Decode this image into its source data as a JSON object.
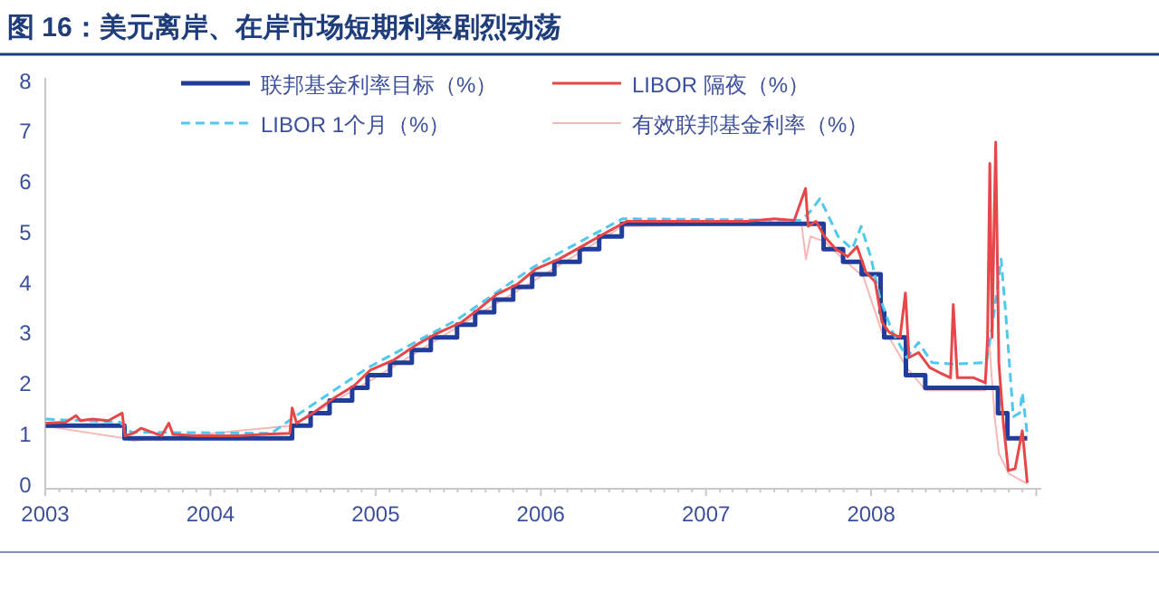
{
  "chart_data": {
    "type": "line",
    "title": "图 16：美元离岸、在岸市场短期利率剧烈动荡",
    "xlim": [
      "2003-01-01",
      "2009-01-12"
    ],
    "xticks": [
      "2003",
      "2004",
      "2005",
      "2006",
      "2007",
      "2008"
    ],
    "ylim": [
      0,
      8
    ],
    "yticks": [
      0,
      1,
      2,
      3,
      4,
      5,
      6,
      7,
      8
    ],
    "grid": false,
    "legend": "top",
    "marker": "none",
    "series": [
      {
        "name": "联邦基金利率目标（%）",
        "type": "step",
        "color": "#1f3d99",
        "line_style": "solid",
        "x": [
          "2003-01-02",
          "2003-06-25",
          "2004-06-30",
          "2004-08-10",
          "2004-09-21",
          "2004-11-10",
          "2004-12-14",
          "2005-02-02",
          "2005-03-22",
          "2005-05-03",
          "2005-06-30",
          "2005-08-09",
          "2005-09-20",
          "2005-11-01",
          "2005-12-13",
          "2006-01-31",
          "2006-03-28",
          "2006-05-10",
          "2006-06-29",
          "2007-09-18",
          "2007-10-31",
          "2007-12-11",
          "2008-01-22",
          "2008-01-30",
          "2008-03-18",
          "2008-04-30",
          "2008-10-08",
          "2008-10-29",
          "2008-12-12"
        ],
        "values": [
          1.25,
          1.0,
          1.25,
          1.5,
          1.75,
          2.0,
          2.25,
          2.5,
          2.75,
          3.0,
          3.25,
          3.5,
          3.75,
          4.0,
          4.25,
          4.5,
          4.75,
          5.0,
          5.25,
          4.75,
          4.5,
          4.25,
          3.5,
          3.0,
          2.25,
          2.0,
          1.5,
          1.0,
          1.0
        ]
      },
      {
        "name": "LIBOR 隔夜（%）",
        "type": "line",
        "color": "#e8474a",
        "line_style": "solid",
        "x": [
          "2003-01-02",
          "2003-02-15",
          "2003-03-10",
          "2003-03-20",
          "2003-04-15",
          "2003-05-20",
          "2003-06-20",
          "2003-06-26",
          "2003-07-15",
          "2003-08-01",
          "2003-09-15",
          "2003-10-01",
          "2003-10-10",
          "2003-12-01",
          "2004-03-01",
          "2004-05-01",
          "2004-06-25",
          "2004-06-30",
          "2004-07-10",
          "2004-08-15",
          "2004-10-01",
          "2004-11-15",
          "2004-12-20",
          "2005-02-10",
          "2005-04-01",
          "2005-05-10",
          "2005-07-10",
          "2005-08-15",
          "2005-09-25",
          "2005-11-10",
          "2005-12-20",
          "2006-02-10",
          "2006-04-01",
          "2006-05-20",
          "2006-07-10",
          "2006-10-01",
          "2007-01-02",
          "2007-04-01",
          "2007-06-01",
          "2007-07-15",
          "2007-08-09",
          "2007-08-15",
          "2007-09-01",
          "2007-09-20",
          "2007-10-15",
          "2007-11-10",
          "2007-12-01",
          "2007-12-20",
          "2008-01-10",
          "2008-01-25",
          "2008-02-10",
          "2008-03-05",
          "2008-03-17",
          "2008-03-25",
          "2008-04-15",
          "2008-05-10",
          "2008-06-01",
          "2008-06-25",
          "2008-07-01",
          "2008-07-10",
          "2008-08-15",
          "2008-09-10",
          "2008-09-15",
          "2008-09-20",
          "2008-09-25",
          "2008-09-30",
          "2008-10-03",
          "2008-10-10",
          "2008-10-20",
          "2008-10-31",
          "2008-11-15",
          "2008-12-01",
          "2008-12-12"
        ],
        "values": [
          1.3,
          1.32,
          1.45,
          1.35,
          1.38,
          1.35,
          1.5,
          1.05,
          1.1,
          1.2,
          1.05,
          1.3,
          1.08,
          1.05,
          1.05,
          1.08,
          1.1,
          1.6,
          1.3,
          1.5,
          1.8,
          2.05,
          2.35,
          2.55,
          2.85,
          3.05,
          3.3,
          3.55,
          3.85,
          4.05,
          4.35,
          4.55,
          4.8,
          5.05,
          5.3,
          5.3,
          5.3,
          5.3,
          5.35,
          5.32,
          5.95,
          5.2,
          5.3,
          5.0,
          4.75,
          4.6,
          4.8,
          4.3,
          4.1,
          3.3,
          3.1,
          3.0,
          3.88,
          2.6,
          2.7,
          2.4,
          2.3,
          2.2,
          3.65,
          2.2,
          2.2,
          2.1,
          3.0,
          6.45,
          3.0,
          5.5,
          6.87,
          2.5,
          1.3,
          0.36,
          0.4,
          1.15,
          0.12
        ]
      },
      {
        "name": "LIBOR 1个月（%）",
        "type": "line",
        "color": "#4fc8ee",
        "line_style": "dashed",
        "x": [
          "2003-01-02",
          "2003-06-15",
          "2003-07-10",
          "2004-05-15",
          "2004-07-01",
          "2004-12-15",
          "2005-06-30",
          "2005-12-15",
          "2006-06-30",
          "2007-07-31",
          "2007-08-20",
          "2007-09-10",
          "2007-10-20",
          "2007-11-20",
          "2007-12-10",
          "2007-12-31",
          "2008-01-20",
          "2008-02-15",
          "2008-03-20",
          "2008-04-15",
          "2008-05-15",
          "2008-07-01",
          "2008-09-12",
          "2008-09-25",
          "2008-10-15",
          "2008-10-25",
          "2008-11-11",
          "2008-11-25",
          "2008-12-01",
          "2008-12-12"
        ],
        "values": [
          1.38,
          1.32,
          1.12,
          1.1,
          1.4,
          2.4,
          3.35,
          4.39,
          5.35,
          5.32,
          5.5,
          5.75,
          5.0,
          4.75,
          5.2,
          4.6,
          3.8,
          3.15,
          2.6,
          2.9,
          2.5,
          2.47,
          2.5,
          3.2,
          4.55,
          3.5,
          1.43,
          1.5,
          1.9,
          1.07
        ]
      },
      {
        "name": "有效联邦基金利率（%）",
        "type": "line",
        "color": "#f5b8b8",
        "line_style": "solid",
        "x": [
          "2003-01-02",
          "2003-06-26",
          "2003-07-15",
          "2004-06-30",
          "2004-12-31",
          "2005-06-30",
          "2005-12-31",
          "2006-06-30",
          "2007-07-31",
          "2007-08-10",
          "2007-08-20",
          "2007-09-20",
          "2007-10-31",
          "2007-12-15",
          "2008-01-25",
          "2008-02-10",
          "2008-03-20",
          "2008-05-01",
          "2008-09-10",
          "2008-09-18",
          "2008-10-01",
          "2008-10-10",
          "2008-11-01",
          "2008-12-12"
        ],
        "values": [
          1.24,
          1.0,
          0.95,
          1.25,
          2.2,
          3.2,
          4.2,
          5.2,
          5.25,
          4.55,
          5.0,
          4.9,
          4.55,
          4.2,
          3.1,
          3.0,
          2.4,
          1.95,
          1.95,
          2.97,
          1.4,
          0.7,
          0.3,
          0.1
        ]
      }
    ]
  }
}
